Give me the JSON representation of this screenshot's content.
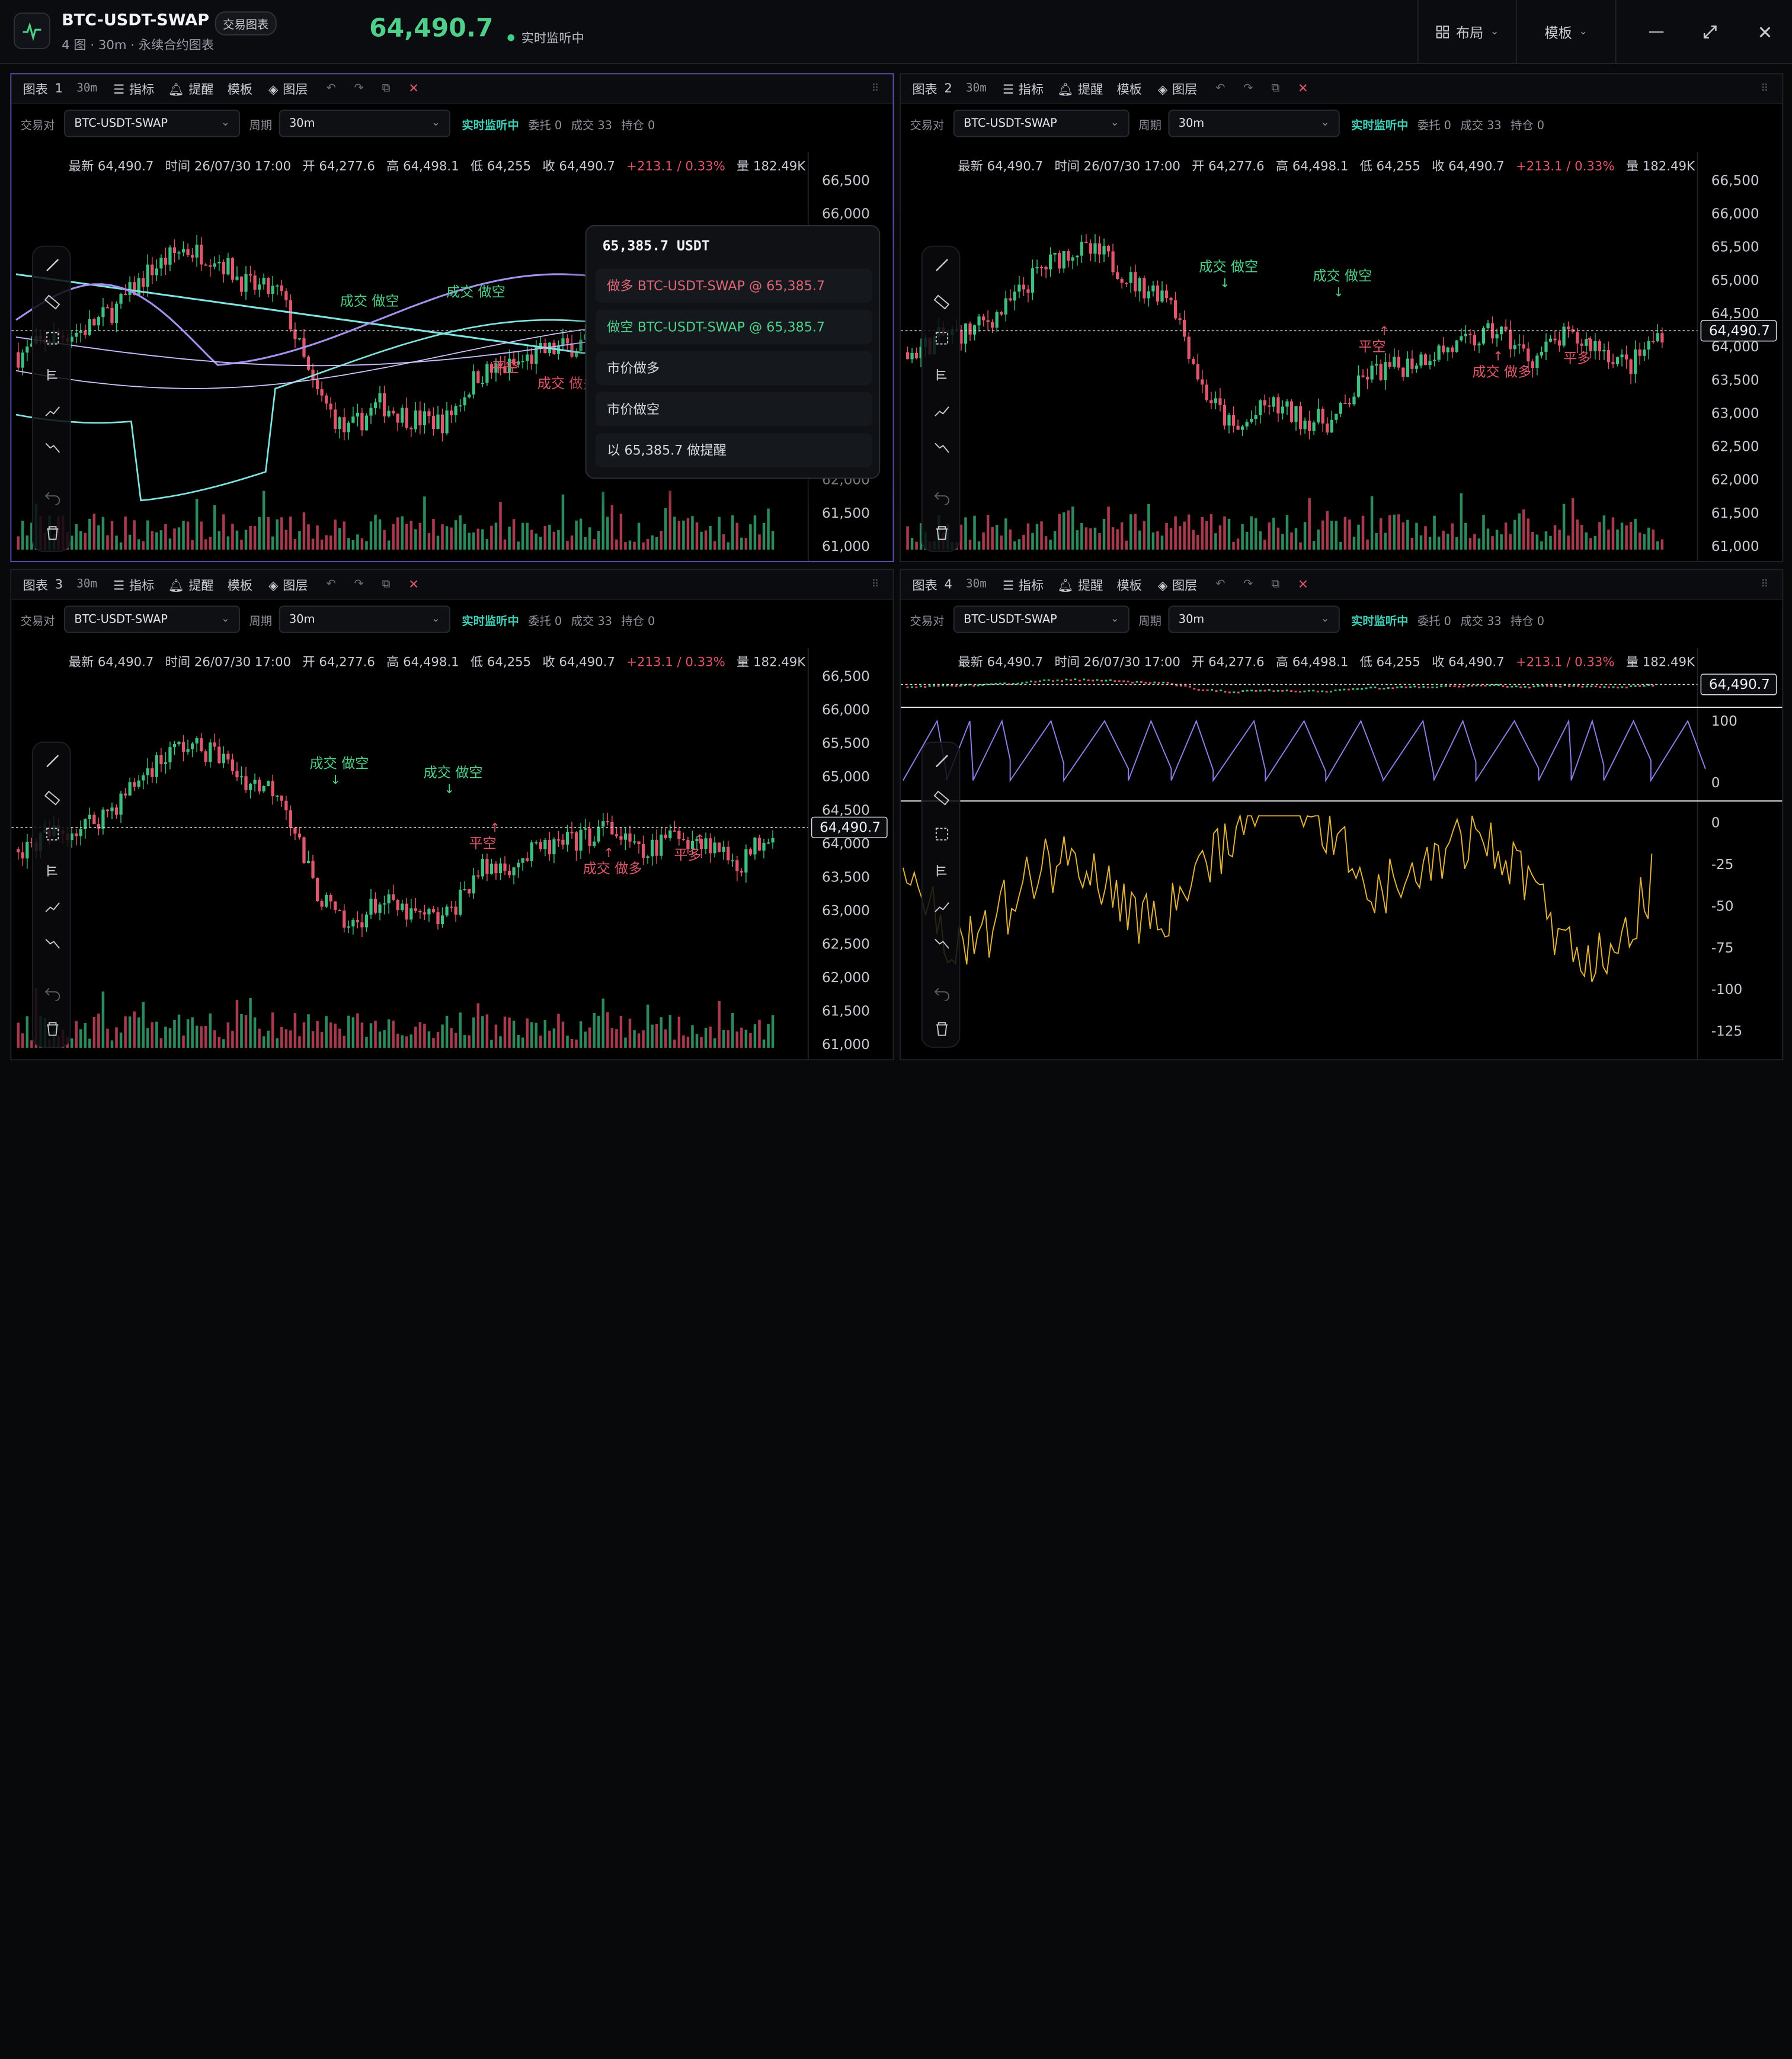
{
  "header": {
    "symbol": "BTC-USDT-SWAP",
    "tag": "交易图表",
    "subtitle": "4 图 · 30m · 永续合约图表",
    "price": "64,490.7",
    "live_status": "实时监听中",
    "layout_label": "布局",
    "template_label": "模板"
  },
  "panel_common": {
    "pair_label": "交易对",
    "pair_value": "BTC-USDT-SWAP",
    "period_label": "周期",
    "period_value": "30m",
    "live": "实时监听中",
    "orders": "委托 0",
    "trades": "成交 33",
    "positions": "持仓 0",
    "indicators": "指标",
    "alerts": "提醒",
    "templates": "模板",
    "layers": "图层",
    "interval": "30m"
  },
  "stats": {
    "last": "最新 64,490.7",
    "time": "时间 26/07/30 17:00",
    "open": "开 64,277.6",
    "high": "高 64,498.1",
    "low": "低 64,255",
    "close": "收 64,490.7",
    "change": "+213.1 / 0.33%",
    "volume": "量 182.49K"
  },
  "panels": [
    {
      "title": "图表",
      "index": "1"
    },
    {
      "title": "图表",
      "index": "2"
    },
    {
      "title": "图表",
      "index": "3"
    },
    {
      "title": "图表",
      "index": "4"
    }
  ],
  "price_axis": [
    "66,500",
    "66,000",
    "65,500",
    "65,000",
    "64,500",
    "64,000",
    "63,500",
    "63,000",
    "62,500",
    "62,000",
    "61,500",
    "61,000"
  ],
  "current_price_label": "64,490.7",
  "osc_axis_top": [
    "100",
    "0"
  ],
  "osc_axis_bottom": [
    "0",
    "-25",
    "-50",
    "-75",
    "-100",
    "-125"
  ],
  "trade_marks": {
    "open_long": "成交 做多",
    "open_short": "成交 做空",
    "close_short": "平空",
    "close_long": "平多"
  },
  "context_menu": {
    "title": "65,385.7 USDT",
    "items": [
      {
        "label": "做多 BTC-USDT-SWAP @ 65,385.7",
        "kind": "long"
      },
      {
        "label": "做空 BTC-USDT-SWAP @ 65,385.7",
        "kind": "short"
      },
      {
        "label": "市价做多",
        "kind": "plain"
      },
      {
        "label": "市价做空",
        "kind": "plain"
      },
      {
        "label": "以 65,385.7 做提醒",
        "kind": "plain"
      }
    ]
  },
  "colors": {
    "up": "#3fbf7f",
    "down": "#e0566b",
    "accent": "#5f4fb0",
    "osc_purple": "#8b80e8",
    "osc_yellow": "#e3b43b",
    "cyan_band": "#7fe3e0"
  }
}
